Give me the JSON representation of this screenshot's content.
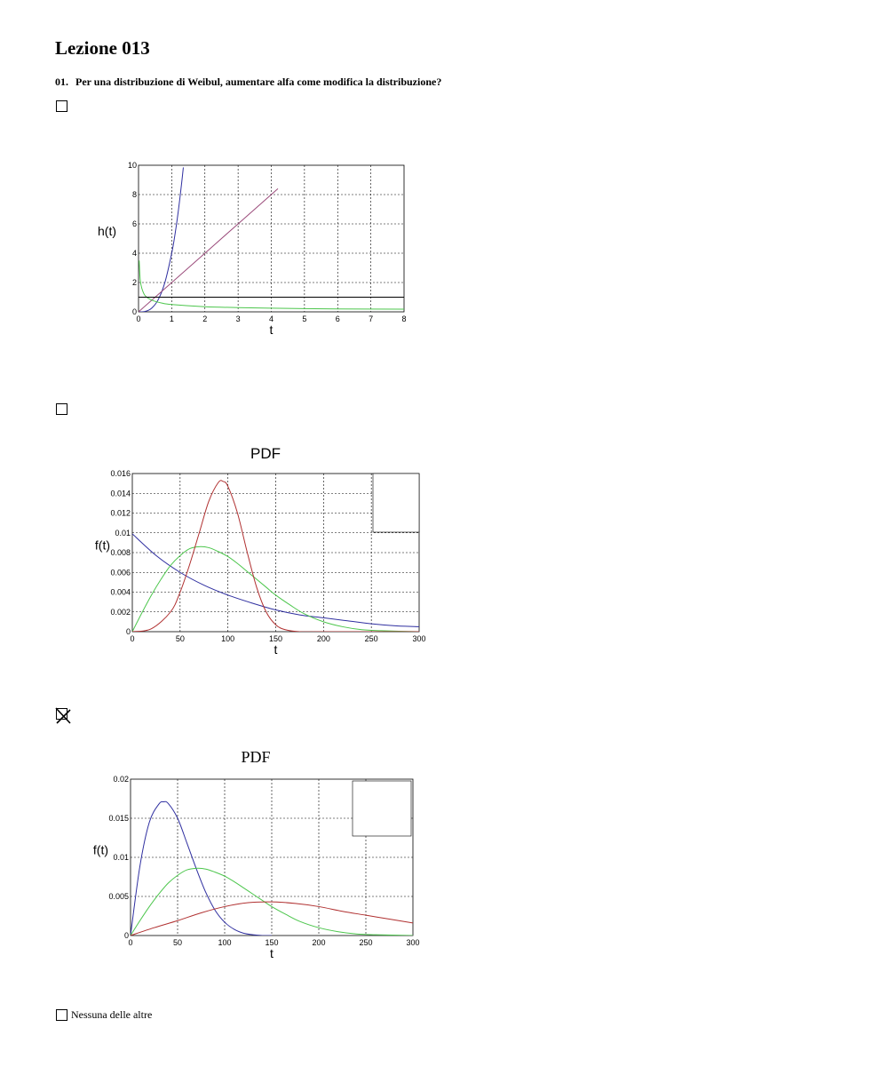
{
  "page_title": "Lezione 013",
  "question": {
    "number": "01.",
    "text": "Per una distribuzione di Weibul, aumentare alfa come modifica la distribuzione?"
  },
  "options": [
    {
      "type": "chart",
      "checked": false
    },
    {
      "type": "chart",
      "checked": false
    },
    {
      "type": "chart",
      "checked": true
    },
    {
      "type": "text",
      "label": "Nessuna delle altre",
      "checked": false
    }
  ],
  "colors": {
    "blue": "#2f2fa0",
    "red": "#b03030",
    "green": "#4cc64c",
    "purple": "#9a4a7a",
    "black": "#000000"
  },
  "chart_data": [
    {
      "type": "line",
      "title": "",
      "xlabel": "t",
      "ylabel": "h(t)",
      "xlim": [
        0,
        8
      ],
      "ylim": [
        0,
        10
      ],
      "xticks": [
        0,
        1,
        2,
        3,
        4,
        5,
        6,
        7,
        8
      ],
      "yticks": [
        0,
        2,
        4,
        6,
        8,
        10
      ],
      "grid": true,
      "series": [
        {
          "color": "blue",
          "x": [
            0,
            0.2,
            0.4,
            0.6,
            0.8,
            1.0,
            1.1,
            1.2,
            1.3,
            1.35
          ],
          "y": [
            0,
            0.03,
            0.26,
            0.86,
            2.05,
            4.0,
            5.3,
            6.9,
            8.8,
            9.85
          ]
        },
        {
          "color": "purple",
          "x": [
            0,
            4.2
          ],
          "y": [
            0,
            8.4
          ]
        },
        {
          "color": "green",
          "x": [
            0.02,
            0.05,
            0.1,
            0.2,
            0.4,
            0.7,
            1.0,
            2,
            3,
            4,
            5,
            6,
            8
          ],
          "y": [
            3.5,
            2.2,
            1.6,
            1.1,
            0.8,
            0.6,
            0.5,
            0.35,
            0.29,
            0.25,
            0.22,
            0.2,
            0.18
          ]
        },
        {
          "color": "black",
          "x": [
            0,
            8
          ],
          "y": [
            1,
            1
          ]
        }
      ]
    },
    {
      "type": "line",
      "title": "PDF",
      "xlabel": "t",
      "ylabel": "f(t)",
      "xlim": [
        0,
        300
      ],
      "ylim": [
        0,
        0.016
      ],
      "xticks": [
        0,
        50,
        100,
        150,
        200,
        250,
        300
      ],
      "yticks": [
        "0",
        "0.002",
        "0.004",
        "0.006",
        "0.008",
        "0.01",
        "0.012",
        "0.014",
        "0.016"
      ],
      "grid": true,
      "series": [
        {
          "color": "blue",
          "x": [
            0,
            25,
            50,
            75,
            100,
            125,
            150,
            175,
            200,
            225,
            250,
            275,
            300
          ],
          "y": [
            0.0099,
            0.0077,
            0.006,
            0.0047,
            0.0037,
            0.0029,
            0.0022,
            0.0017,
            0.0014,
            0.0011,
            0.0008,
            0.0006,
            0.0005
          ]
        },
        {
          "color": "green",
          "x": [
            0,
            10,
            20,
            30,
            40,
            50,
            60,
            70,
            80,
            90,
            100,
            110,
            120,
            130,
            140,
            150,
            165,
            180,
            200,
            220,
            240,
            260,
            300
          ],
          "y": [
            0,
            0.0019,
            0.0037,
            0.0053,
            0.0067,
            0.0077,
            0.0084,
            0.0086,
            0.0085,
            0.0081,
            0.0076,
            0.0069,
            0.0061,
            0.0053,
            0.0045,
            0.0037,
            0.0027,
            0.0018,
            0.001,
            0.0005,
            0.0002,
            0.0001,
            0
          ]
        },
        {
          "color": "red",
          "x": [
            0,
            20,
            40,
            50,
            60,
            70,
            80,
            90,
            95,
            100,
            110,
            120,
            130,
            140,
            150,
            160,
            175,
            200,
            300
          ],
          "y": [
            0,
            0.0003,
            0.002,
            0.004,
            0.0068,
            0.01,
            0.0132,
            0.0151,
            0.0152,
            0.0147,
            0.012,
            0.0081,
            0.0045,
            0.002,
            0.0007,
            0.0002,
            0,
            0,
            0
          ]
        }
      ]
    },
    {
      "type": "line",
      "title": "PDF",
      "xlabel": "t",
      "ylabel": "f(t)",
      "xlim": [
        0,
        300
      ],
      "ylim": [
        0,
        0.02
      ],
      "xticks": [
        0,
        50,
        100,
        150,
        200,
        250,
        300
      ],
      "yticks": [
        "0",
        "0.005",
        "0.01",
        "0.015",
        "0.02"
      ],
      "grid": true,
      "series": [
        {
          "color": "blue",
          "x": [
            0,
            10,
            20,
            30,
            35,
            40,
            50,
            60,
            70,
            80,
            90,
            100,
            110,
            120,
            130,
            140,
            150
          ],
          "y": [
            0,
            0.0089,
            0.0145,
            0.0168,
            0.0171,
            0.0169,
            0.015,
            0.0118,
            0.0085,
            0.0055,
            0.0032,
            0.0017,
            0.0008,
            0.0003,
            0.0001,
            0,
            0
          ]
        },
        {
          "color": "green",
          "x": [
            0,
            10,
            20,
            30,
            40,
            50,
            60,
            70,
            80,
            90,
            100,
            110,
            120,
            130,
            140,
            150,
            165,
            180,
            200,
            220,
            240,
            260,
            300
          ],
          "y": [
            0,
            0.0019,
            0.0037,
            0.0053,
            0.0067,
            0.0077,
            0.0084,
            0.0086,
            0.0085,
            0.0081,
            0.0076,
            0.0069,
            0.0061,
            0.0053,
            0.0045,
            0.0037,
            0.0027,
            0.0018,
            0.001,
            0.0005,
            0.0002,
            0.0001,
            0
          ]
        },
        {
          "color": "red",
          "x": [
            0,
            25,
            50,
            75,
            100,
            125,
            150,
            175,
            200,
            225,
            250,
            275,
            300
          ],
          "y": [
            0,
            0.001,
            0.0019,
            0.0029,
            0.0037,
            0.0042,
            0.0043,
            0.0041,
            0.0037,
            0.0031,
            0.0026,
            0.0021,
            0.0016
          ]
        }
      ]
    }
  ]
}
